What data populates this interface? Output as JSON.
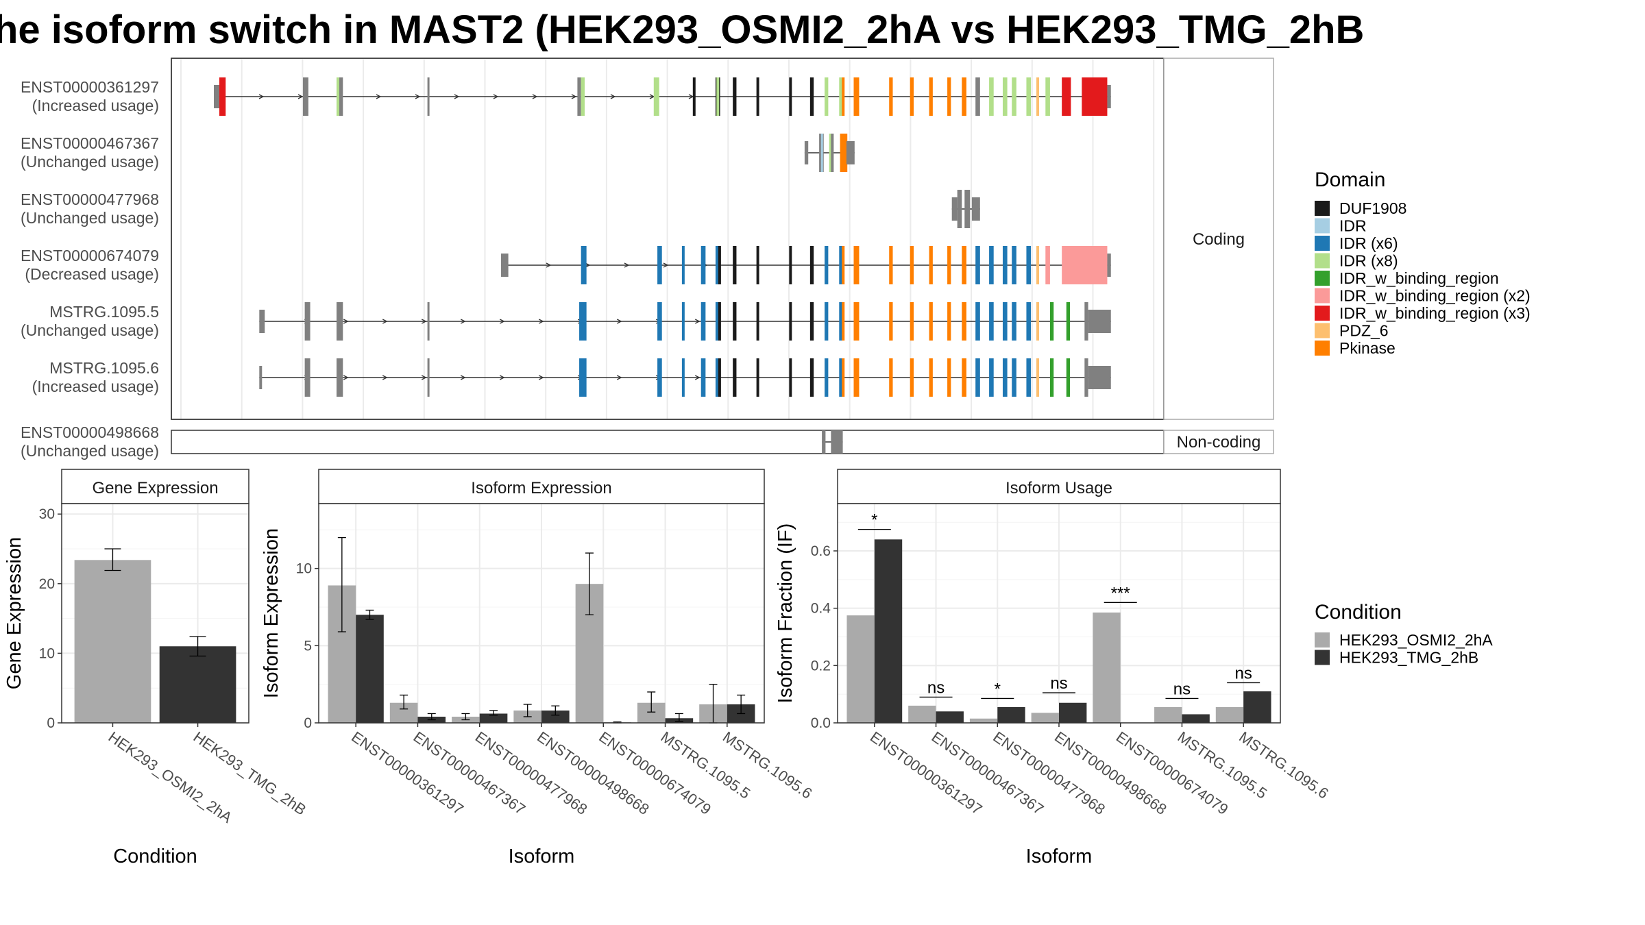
{
  "title": "he isoform switch in MAST2 (HEK293_OSMI2_2hA vs HEK293_TMG_2hB",
  "colors": {
    "DUF1908": "#1a1a1a",
    "IDR": "#a6cee3",
    "IDR (x6)": "#1f78b4",
    "IDR (x8)": "#b2df8a",
    "IDR_w_binding_region": "#33a02c",
    "IDR_w_binding_region (x2)": "#fb9a99",
    "IDR_w_binding_region (x3)": "#e31a1c",
    "PDZ_6": "#fdbf6f",
    "Pkinase": "#ff7f00",
    "none": "#808080",
    "condA": "#aaaaaa",
    "condB": "#333333"
  },
  "structure": {
    "strip_coding": "Coding",
    "strip_noncoding": "Non-coding",
    "transcripts": [
      {
        "id": "ENST00000361297",
        "usage": "(Increased usage)",
        "section": "coding",
        "exons": [
          [
            0.0,
            0.006,
            "none"
          ],
          [
            0.006,
            0.013,
            "IDR_w_binding_region (x3)"
          ],
          [
            0.098,
            0.104,
            "none"
          ],
          [
            0.135,
            0.14,
            "IDR (x8)"
          ],
          [
            0.138,
            0.142,
            "none"
          ],
          [
            0.235,
            0.237,
            "none"
          ],
          [
            0.4,
            0.404,
            "none"
          ],
          [
            0.404,
            0.408,
            "IDR (x8)"
          ],
          [
            0.484,
            0.49,
            "IDR (x8)"
          ],
          [
            0.527,
            0.53,
            "DUF1908"
          ],
          [
            0.552,
            0.557,
            "DUF1908"
          ],
          [
            0.553,
            0.556,
            "IDR (x8)"
          ],
          [
            0.571,
            0.575,
            "DUF1908"
          ],
          [
            0.597,
            0.6,
            "DUF1908"
          ],
          [
            0.633,
            0.636,
            "DUF1908"
          ],
          [
            0.656,
            0.66,
            "DUF1908"
          ],
          [
            0.672,
            0.676,
            "IDR (x8)"
          ],
          [
            0.688,
            0.692,
            "IDR (x8)"
          ],
          [
            0.691,
            0.694,
            "Pkinase"
          ],
          [
            0.704,
            0.71,
            "Pkinase"
          ],
          [
            0.743,
            0.747,
            "Pkinase"
          ],
          [
            0.766,
            0.77,
            "Pkinase"
          ],
          [
            0.787,
            0.791,
            "Pkinase"
          ],
          [
            0.807,
            0.811,
            "Pkinase"
          ],
          [
            0.823,
            0.828,
            "Pkinase"
          ],
          [
            0.838,
            0.843,
            "none"
          ],
          [
            0.853,
            0.858,
            "IDR (x8)"
          ],
          [
            0.868,
            0.873,
            "IDR (x8)"
          ],
          [
            0.878,
            0.883,
            "IDR (x8)"
          ],
          [
            0.894,
            0.899,
            "IDR (x8)"
          ],
          [
            0.905,
            0.908,
            "PDZ_6"
          ],
          [
            0.915,
            0.92,
            "IDR (x8)"
          ],
          [
            0.933,
            0.943,
            "IDR_w_binding_region (x3)"
          ],
          [
            0.955,
            0.983,
            "IDR_w_binding_region (x3)"
          ],
          [
            0.983,
            0.987,
            "none"
          ]
        ]
      },
      {
        "id": "ENST00000467367",
        "usage": "(Unchanged usage)",
        "section": "coding",
        "exons": [
          [
            0.65,
            0.654,
            "none"
          ],
          [
            0.666,
            0.671,
            "none"
          ],
          [
            0.668,
            0.67,
            "IDR"
          ],
          [
            0.677,
            0.68,
            "IDR (x8)"
          ],
          [
            0.679,
            0.682,
            "none"
          ],
          [
            0.689,
            0.697,
            "Pkinase"
          ],
          [
            0.696,
            0.705,
            "none"
          ]
        ]
      },
      {
        "id": "ENST00000477968",
        "usage": "(Unchanged usage)",
        "section": "coding",
        "exons": [
          [
            0.812,
            0.818,
            "none"
          ],
          [
            0.818,
            0.823,
            "none"
          ],
          [
            0.826,
            0.832,
            "none"
          ],
          [
            0.834,
            0.843,
            "none"
          ]
        ]
      },
      {
        "id": "ENST00000674079",
        "usage": "(Decreased usage)",
        "section": "coding",
        "exons": [
          [
            0.316,
            0.324,
            "none"
          ],
          [
            0.404,
            0.41,
            "IDR (x6)"
          ],
          [
            0.488,
            0.493,
            "IDR (x6)"
          ],
          [
            0.515,
            0.518,
            "IDR (x6)"
          ],
          [
            0.536,
            0.541,
            "IDR (x6)"
          ],
          [
            0.552,
            0.556,
            "IDR (x6)"
          ],
          [
            0.555,
            0.558,
            "DUF1908"
          ],
          [
            0.571,
            0.575,
            "DUF1908"
          ],
          [
            0.597,
            0.6,
            "DUF1908"
          ],
          [
            0.633,
            0.636,
            "DUF1908"
          ],
          [
            0.656,
            0.66,
            "DUF1908"
          ],
          [
            0.672,
            0.676,
            "IDR (x6)"
          ],
          [
            0.688,
            0.692,
            "IDR (x6)"
          ],
          [
            0.691,
            0.694,
            "Pkinase"
          ],
          [
            0.704,
            0.71,
            "Pkinase"
          ],
          [
            0.743,
            0.747,
            "Pkinase"
          ],
          [
            0.766,
            0.77,
            "Pkinase"
          ],
          [
            0.787,
            0.791,
            "Pkinase"
          ],
          [
            0.807,
            0.811,
            "Pkinase"
          ],
          [
            0.823,
            0.828,
            "Pkinase"
          ],
          [
            0.838,
            0.843,
            "IDR (x6)"
          ],
          [
            0.853,
            0.858,
            "IDR (x6)"
          ],
          [
            0.868,
            0.873,
            "IDR (x6)"
          ],
          [
            0.878,
            0.883,
            "IDR (x6)"
          ],
          [
            0.894,
            0.899,
            "IDR (x6)"
          ],
          [
            0.905,
            0.908,
            "PDZ_6"
          ],
          [
            0.915,
            0.92,
            "IDR_w_binding_region (x2)"
          ],
          [
            0.933,
            0.983,
            "IDR_w_binding_region (x2)"
          ],
          [
            0.983,
            0.987,
            "none"
          ]
        ]
      },
      {
        "id": "MSTRG.1095.5",
        "usage": "(Unchanged usage)",
        "section": "coding",
        "exons": [
          [
            0.05,
            0.056,
            "none"
          ],
          [
            0.1,
            0.106,
            "none"
          ],
          [
            0.135,
            0.142,
            "none"
          ],
          [
            0.235,
            0.237,
            "none"
          ],
          [
            0.402,
            0.41,
            "IDR (x6)"
          ],
          [
            0.488,
            0.493,
            "IDR (x6)"
          ],
          [
            0.515,
            0.518,
            "IDR (x6)"
          ],
          [
            0.536,
            0.541,
            "IDR (x6)"
          ],
          [
            0.552,
            0.556,
            "IDR (x6)"
          ],
          [
            0.555,
            0.558,
            "DUF1908"
          ],
          [
            0.571,
            0.575,
            "DUF1908"
          ],
          [
            0.597,
            0.6,
            "DUF1908"
          ],
          [
            0.633,
            0.636,
            "DUF1908"
          ],
          [
            0.656,
            0.66,
            "DUF1908"
          ],
          [
            0.672,
            0.676,
            "IDR (x6)"
          ],
          [
            0.688,
            0.692,
            "IDR (x6)"
          ],
          [
            0.691,
            0.694,
            "Pkinase"
          ],
          [
            0.704,
            0.71,
            "Pkinase"
          ],
          [
            0.743,
            0.747,
            "Pkinase"
          ],
          [
            0.766,
            0.77,
            "Pkinase"
          ],
          [
            0.787,
            0.791,
            "Pkinase"
          ],
          [
            0.807,
            0.811,
            "Pkinase"
          ],
          [
            0.823,
            0.828,
            "Pkinase"
          ],
          [
            0.838,
            0.843,
            "IDR (x6)"
          ],
          [
            0.853,
            0.858,
            "IDR (x6)"
          ],
          [
            0.868,
            0.873,
            "IDR (x6)"
          ],
          [
            0.878,
            0.883,
            "IDR (x6)"
          ],
          [
            0.894,
            0.899,
            "IDR (x6)"
          ],
          [
            0.905,
            0.908,
            "PDZ_6"
          ],
          [
            0.92,
            0.924,
            "IDR_w_binding_region"
          ],
          [
            0.938,
            0.942,
            "IDR_w_binding_region"
          ],
          [
            0.958,
            0.962,
            "none"
          ],
          [
            0.962,
            0.987,
            "none"
          ]
        ]
      },
      {
        "id": "MSTRG.1095.6",
        "usage": "(Increased usage)",
        "section": "coding",
        "exons": [
          [
            0.05,
            0.053,
            "none"
          ],
          [
            0.1,
            0.106,
            "none"
          ],
          [
            0.135,
            0.142,
            "none"
          ],
          [
            0.235,
            0.237,
            "none"
          ],
          [
            0.402,
            0.41,
            "IDR (x6)"
          ],
          [
            0.488,
            0.493,
            "IDR (x6)"
          ],
          [
            0.515,
            0.518,
            "IDR (x6)"
          ],
          [
            0.536,
            0.541,
            "IDR (x6)"
          ],
          [
            0.552,
            0.556,
            "IDR (x6)"
          ],
          [
            0.555,
            0.558,
            "DUF1908"
          ],
          [
            0.571,
            0.575,
            "DUF1908"
          ],
          [
            0.597,
            0.6,
            "DUF1908"
          ],
          [
            0.633,
            0.636,
            "DUF1908"
          ],
          [
            0.656,
            0.66,
            "DUF1908"
          ],
          [
            0.672,
            0.676,
            "IDR (x6)"
          ],
          [
            0.688,
            0.692,
            "IDR (x6)"
          ],
          [
            0.691,
            0.694,
            "Pkinase"
          ],
          [
            0.704,
            0.71,
            "Pkinase"
          ],
          [
            0.743,
            0.747,
            "Pkinase"
          ],
          [
            0.766,
            0.77,
            "Pkinase"
          ],
          [
            0.787,
            0.791,
            "Pkinase"
          ],
          [
            0.807,
            0.811,
            "Pkinase"
          ],
          [
            0.823,
            0.828,
            "Pkinase"
          ],
          [
            0.838,
            0.843,
            "IDR (x6)"
          ],
          [
            0.853,
            0.858,
            "IDR (x6)"
          ],
          [
            0.868,
            0.873,
            "IDR (x6)"
          ],
          [
            0.878,
            0.883,
            "IDR (x6)"
          ],
          [
            0.894,
            0.899,
            "IDR (x6)"
          ],
          [
            0.905,
            0.908,
            "PDZ_6"
          ],
          [
            0.92,
            0.924,
            "IDR_w_binding_region"
          ],
          [
            0.938,
            0.942,
            "IDR_w_binding_region"
          ],
          [
            0.958,
            0.962,
            "none"
          ],
          [
            0.962,
            0.987,
            "none"
          ]
        ]
      },
      {
        "id": "ENST00000498668",
        "usage": "(Unchanged usage)",
        "section": "noncoding",
        "exons": [
          [
            0.669,
            0.673,
            "none"
          ],
          [
            0.679,
            0.692,
            "none"
          ]
        ]
      }
    ]
  },
  "legend_domain": {
    "title": "Domain",
    "items": [
      "DUF1908",
      "IDR",
      "IDR (x6)",
      "IDR (x8)",
      "IDR_w_binding_region",
      "IDR_w_binding_region (x2)",
      "IDR_w_binding_region (x3)",
      "PDZ_6",
      "Pkinase"
    ]
  },
  "legend_condition": {
    "title": "Condition",
    "items": [
      "HEK293_OSMI2_2hA",
      "HEK293_TMG_2hB"
    ]
  },
  "chart_data": [
    {
      "type": "bar",
      "panel": "Gene Expression",
      "xlabel": "Condition",
      "ylabel": "Gene Expression",
      "ylim": [
        0,
        31.5
      ],
      "yticks": [
        0,
        10,
        20,
        30
      ],
      "categories": [
        "HEK293_OSMI2_2hA",
        "HEK293_TMG_2hB"
      ],
      "values": [
        23.4,
        11.0
      ],
      "errors": [
        [
          21.9,
          25.0
        ],
        [
          9.6,
          12.4
        ]
      ]
    },
    {
      "type": "bar",
      "panel": "Isoform Expression",
      "xlabel": "Isoform",
      "ylabel": "Isoform Expression",
      "ylim": [
        0,
        14.2
      ],
      "yticks": [
        0,
        5,
        10
      ],
      "categories": [
        "ENST00000361297",
        "ENST00000467367",
        "ENST00000477968",
        "ENST00000498668",
        "ENST00000674079",
        "MSTRG.1095.5",
        "MSTRG.1095.6"
      ],
      "series": [
        {
          "name": "HEK293_OSMI2_2hA",
          "values": [
            8.9,
            1.3,
            0.4,
            0.8,
            9.0,
            1.3,
            1.2
          ],
          "errors": [
            [
              5.9,
              12.0
            ],
            [
              0.9,
              1.8
            ],
            [
              0.2,
              0.6
            ],
            [
              0.4,
              1.2
            ],
            [
              7.0,
              11.0
            ],
            [
              0.7,
              2.0
            ],
            [
              0.0,
              2.5
            ]
          ]
        },
        {
          "name": "HEK293_TMG_2hB",
          "values": [
            7.0,
            0.4,
            0.6,
            0.8,
            0.03,
            0.3,
            1.2
          ],
          "errors": [
            [
              6.7,
              7.3
            ],
            [
              0.2,
              0.6
            ],
            [
              0.5,
              0.8
            ],
            [
              0.5,
              1.1
            ],
            [
              0.0,
              0.06
            ],
            [
              0.1,
              0.6
            ],
            [
              0.6,
              1.8
            ]
          ]
        }
      ]
    },
    {
      "type": "bar",
      "panel": "Isoform Usage",
      "xlabel": "Isoform",
      "ylabel": "Isoform Fraction (IF)",
      "ylim": [
        0,
        0.765
      ],
      "yticks": [
        0.0,
        0.2,
        0.4,
        0.6
      ],
      "ytick_labels": [
        "0.0",
        "0.2",
        "0.4",
        "0.6"
      ],
      "categories": [
        "ENST00000361297",
        "ENST00000467367",
        "ENST00000477968",
        "ENST00000498668",
        "ENST00000674079",
        "MSTRG.1095.5",
        "MSTRG.1095.6"
      ],
      "series": [
        {
          "name": "HEK293_OSMI2_2hA",
          "values": [
            0.375,
            0.06,
            0.015,
            0.035,
            0.385,
            0.055,
            0.055
          ]
        },
        {
          "name": "HEK293_TMG_2hB",
          "values": [
            0.64,
            0.04,
            0.055,
            0.07,
            0.0,
            0.03,
            0.11
          ]
        }
      ],
      "significance": [
        "*",
        "ns",
        "*",
        "ns",
        "***",
        "ns",
        "ns"
      ],
      "sig_y": [
        0.675,
        0.09,
        0.085,
        0.105,
        0.42,
        0.085,
        0.14
      ]
    }
  ]
}
